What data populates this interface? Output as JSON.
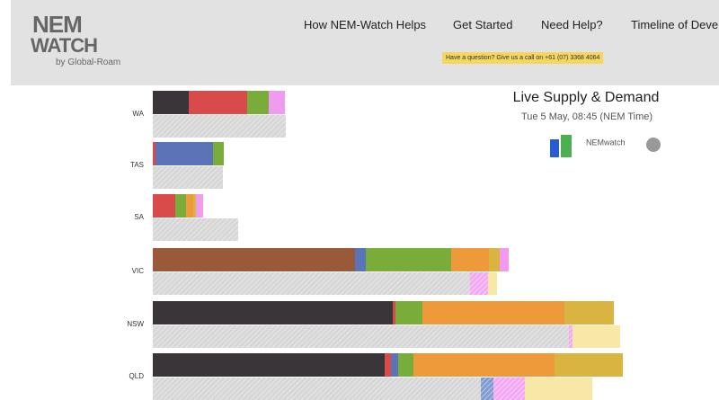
{
  "header": {
    "logo": {
      "line1": "NEM",
      "line2": "WATCH",
      "byline": "by Global-Roam"
    },
    "nav": [
      "How NEM-Watch Helps",
      "Get Started",
      "Need Help?",
      "Timeline of Deve"
    ],
    "banner": "Have a question? Give us a call on +61 (07) 3368 4064"
  },
  "chart_data": {
    "type": "stacked-bar-horizontal",
    "title": "Live Supply & Demand",
    "subtitle": "Tue 5 May, 08:45 (NEM Time)",
    "brand": "NEMwatch",
    "categories": [
      "WA",
      "TAS",
      "SA",
      "VIC",
      "NSW",
      "QLD"
    ],
    "supply": [
      {
        "color": "#3a3538",
        "values": [
          40,
          0,
          0,
          0,
          267,
          258
        ]
      },
      {
        "color": "#9a5a3a",
        "values": [
          0,
          0,
          0,
          225,
          0,
          0
        ]
      },
      {
        "color": "#d94a4a",
        "values": [
          65,
          3,
          25,
          0,
          3,
          7
        ]
      },
      {
        "color": "#5b74b8",
        "values": [
          0,
          64,
          0,
          12,
          0,
          8
        ]
      },
      {
        "color": "#7aac3a",
        "values": [
          24,
          12,
          12,
          95,
          30,
          17
        ]
      },
      {
        "color": "#ef9a3a",
        "values": [
          0,
          0,
          8,
          42,
          158,
          157
        ]
      },
      {
        "color": "#d9b440",
        "values": [
          0,
          0,
          3,
          12,
          55,
          76
        ]
      },
      {
        "color": "#f09af0",
        "values": [
          18,
          0,
          8,
          10,
          0,
          0
        ]
      }
    ],
    "demand": [
      {
        "color": "#d6d6d6",
        "hatched": true,
        "values": [
          148,
          78,
          95,
          353,
          463,
          365
        ]
      },
      {
        "color": "#7f9bd0",
        "hatched": true,
        "values": [
          0,
          0,
          0,
          0,
          0,
          14
        ]
      },
      {
        "color": "#f4a8f4",
        "hatched": true,
        "values": [
          0,
          0,
          0,
          20,
          4,
          35
        ]
      },
      {
        "color": "#f8e8a8",
        "hatched": false,
        "values": [
          0,
          0,
          0,
          10,
          53,
          75
        ]
      }
    ]
  }
}
